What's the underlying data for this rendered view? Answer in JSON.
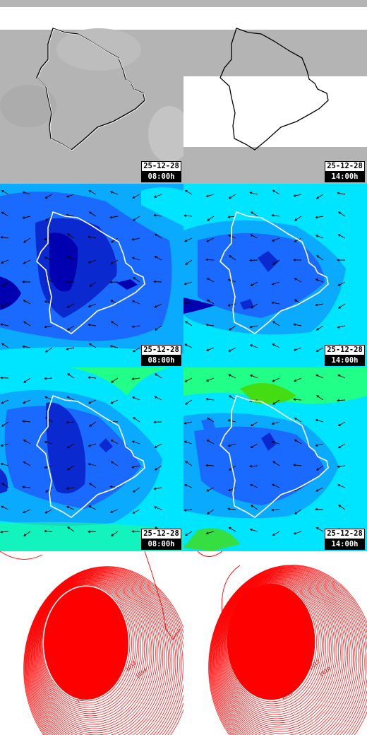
{
  "panels": [
    {
      "type": "satellite",
      "date": "25-12-28",
      "time": "08:00h"
    },
    {
      "type": "satellite",
      "date": "25-12-28",
      "time": "14:00h"
    },
    {
      "type": "wind_low",
      "date": "25-12-28",
      "time": "08:00h"
    },
    {
      "type": "wind_low",
      "date": "25-12-28",
      "time": "14:00h"
    },
    {
      "type": "wind_high",
      "date": "25-12-28",
      "time": "08:00h"
    },
    {
      "type": "wind_high",
      "date": "25-12-28",
      "time": "14:00h"
    },
    {
      "type": "pressure",
      "date": "",
      "time": ""
    },
    {
      "type": "pressure",
      "date": "",
      "time": ""
    }
  ],
  "pressure_labels": [
    "1012",
    "1014",
    "1010",
    "1012",
    "1010",
    "1012"
  ],
  "colors": {
    "cyan": "#00e5ff",
    "light_blue": "#0aaaff",
    "mid_blue": "#1a6aff",
    "dark_blue": "#0a2ad0",
    "navy": "#0000b0",
    "green": "#22ff88",
    "bright_green": "#44dd11",
    "coast": "#ffffff",
    "isobar": "#ff0000"
  }
}
